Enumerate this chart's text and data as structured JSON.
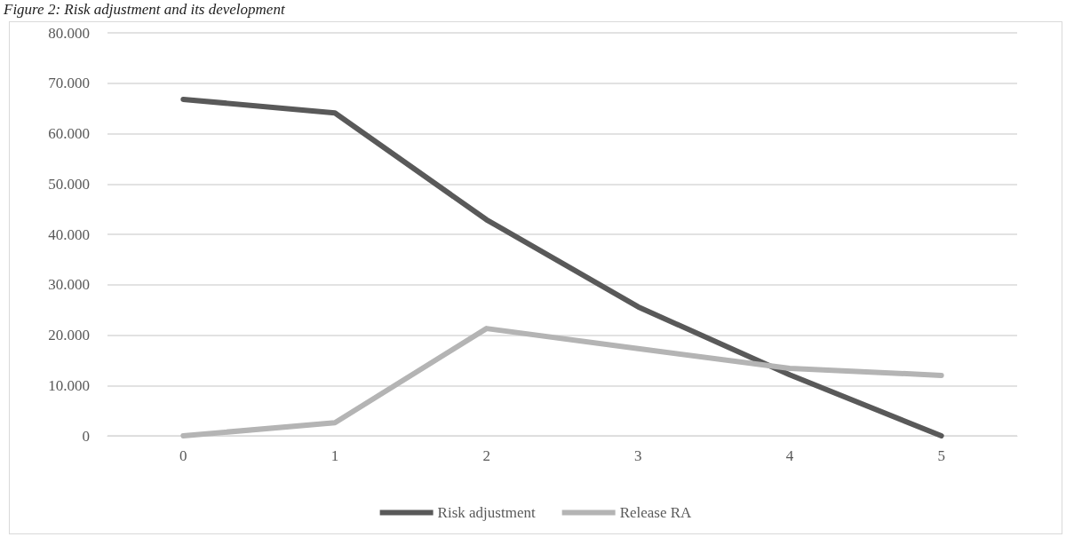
{
  "chart_data": {
    "type": "line",
    "title": "Figure 2: Risk adjustment and its development",
    "categories": [
      "0",
      "1",
      "2",
      "3",
      "4",
      "5"
    ],
    "series": [
      {
        "name": "Risk adjustment",
        "color": "#595959",
        "values": [
          66800,
          64100,
          42900,
          25600,
          12100,
          0
        ]
      },
      {
        "name": "Release RA",
        "color": "#b4b4b4",
        "values": [
          0,
          2600,
          21300,
          17300,
          13400,
          12000
        ]
      }
    ],
    "ylim": [
      0,
      80000
    ],
    "yticks": [
      0,
      {
        "value": 10000,
        "label": "10.000"
      },
      {
        "value": 20000,
        "label": "20.000"
      },
      {
        "value": 30000,
        "label": "30.000"
      },
      {
        "value": 40000,
        "label": "40.000"
      },
      {
        "value": 50000,
        "label": "50.000"
      },
      {
        "value": 60000,
        "label": "60.000"
      },
      {
        "value": 70000,
        "label": "70.000"
      },
      {
        "value": 80000,
        "label": "80.000"
      }
    ],
    "grid": "y",
    "legend": "bottom",
    "marker": "none",
    "line_style": "solid"
  }
}
